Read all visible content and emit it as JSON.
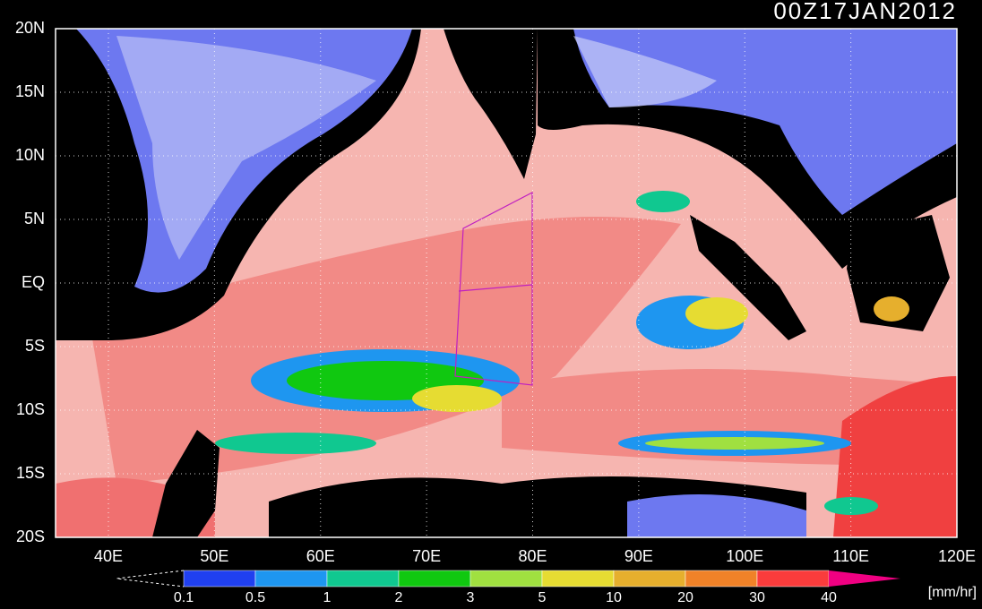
{
  "title": "00Z17JAN2012",
  "x_axis": {
    "labels": [
      "40E",
      "50E",
      "60E",
      "70E",
      "80E",
      "90E",
      "100E",
      "110E",
      "120E"
    ]
  },
  "y_axis": {
    "labels": [
      "20N",
      "15N",
      "10N",
      "5N",
      "EQ",
      "5S",
      "10S",
      "15S",
      "20S"
    ]
  },
  "colorbar": {
    "labels": [
      "0.1",
      "0.5",
      "1",
      "2",
      "3",
      "5",
      "10",
      "20",
      "30",
      "40"
    ],
    "colors": [
      "#2040f0",
      "#1e96f0",
      "#10c890",
      "#10c810",
      "#a0e040",
      "#e6dc32",
      "#e6af2d",
      "#f08228",
      "#fa3c3c",
      "#f00082"
    ],
    "unit": "[mm/hr]"
  }
}
